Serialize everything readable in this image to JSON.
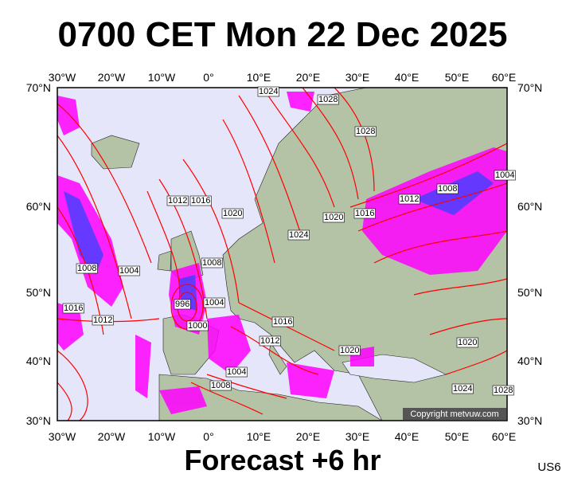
{
  "header": {
    "title": "0700 CET Mon 22 Dec 2025"
  },
  "footer": {
    "title": "Forecast +6 hr",
    "code": "US6"
  },
  "map": {
    "copyright": "Copyright metvuw.com",
    "longitude_labels": [
      "30°W",
      "20°W",
      "10°W",
      "0°",
      "10°E",
      "20°E",
      "30°E",
      "40°E",
      "50°E",
      "60°E"
    ],
    "latitude_labels": [
      "70°N",
      "60°N",
      "50°N",
      "40°N",
      "30°N"
    ],
    "isobar_labels": [
      "1024",
      "1028",
      "1028",
      "1012",
      "1016",
      "1020",
      "1024",
      "1020",
      "1016",
      "1012",
      "1008",
      "1004",
      "1008",
      "1004",
      "1008",
      "996",
      "1004",
      "1000",
      "1016",
      "1012",
      "1016",
      "1012",
      "1020",
      "1020",
      "1004",
      "1008",
      "1024",
      "1028"
    ]
  }
}
